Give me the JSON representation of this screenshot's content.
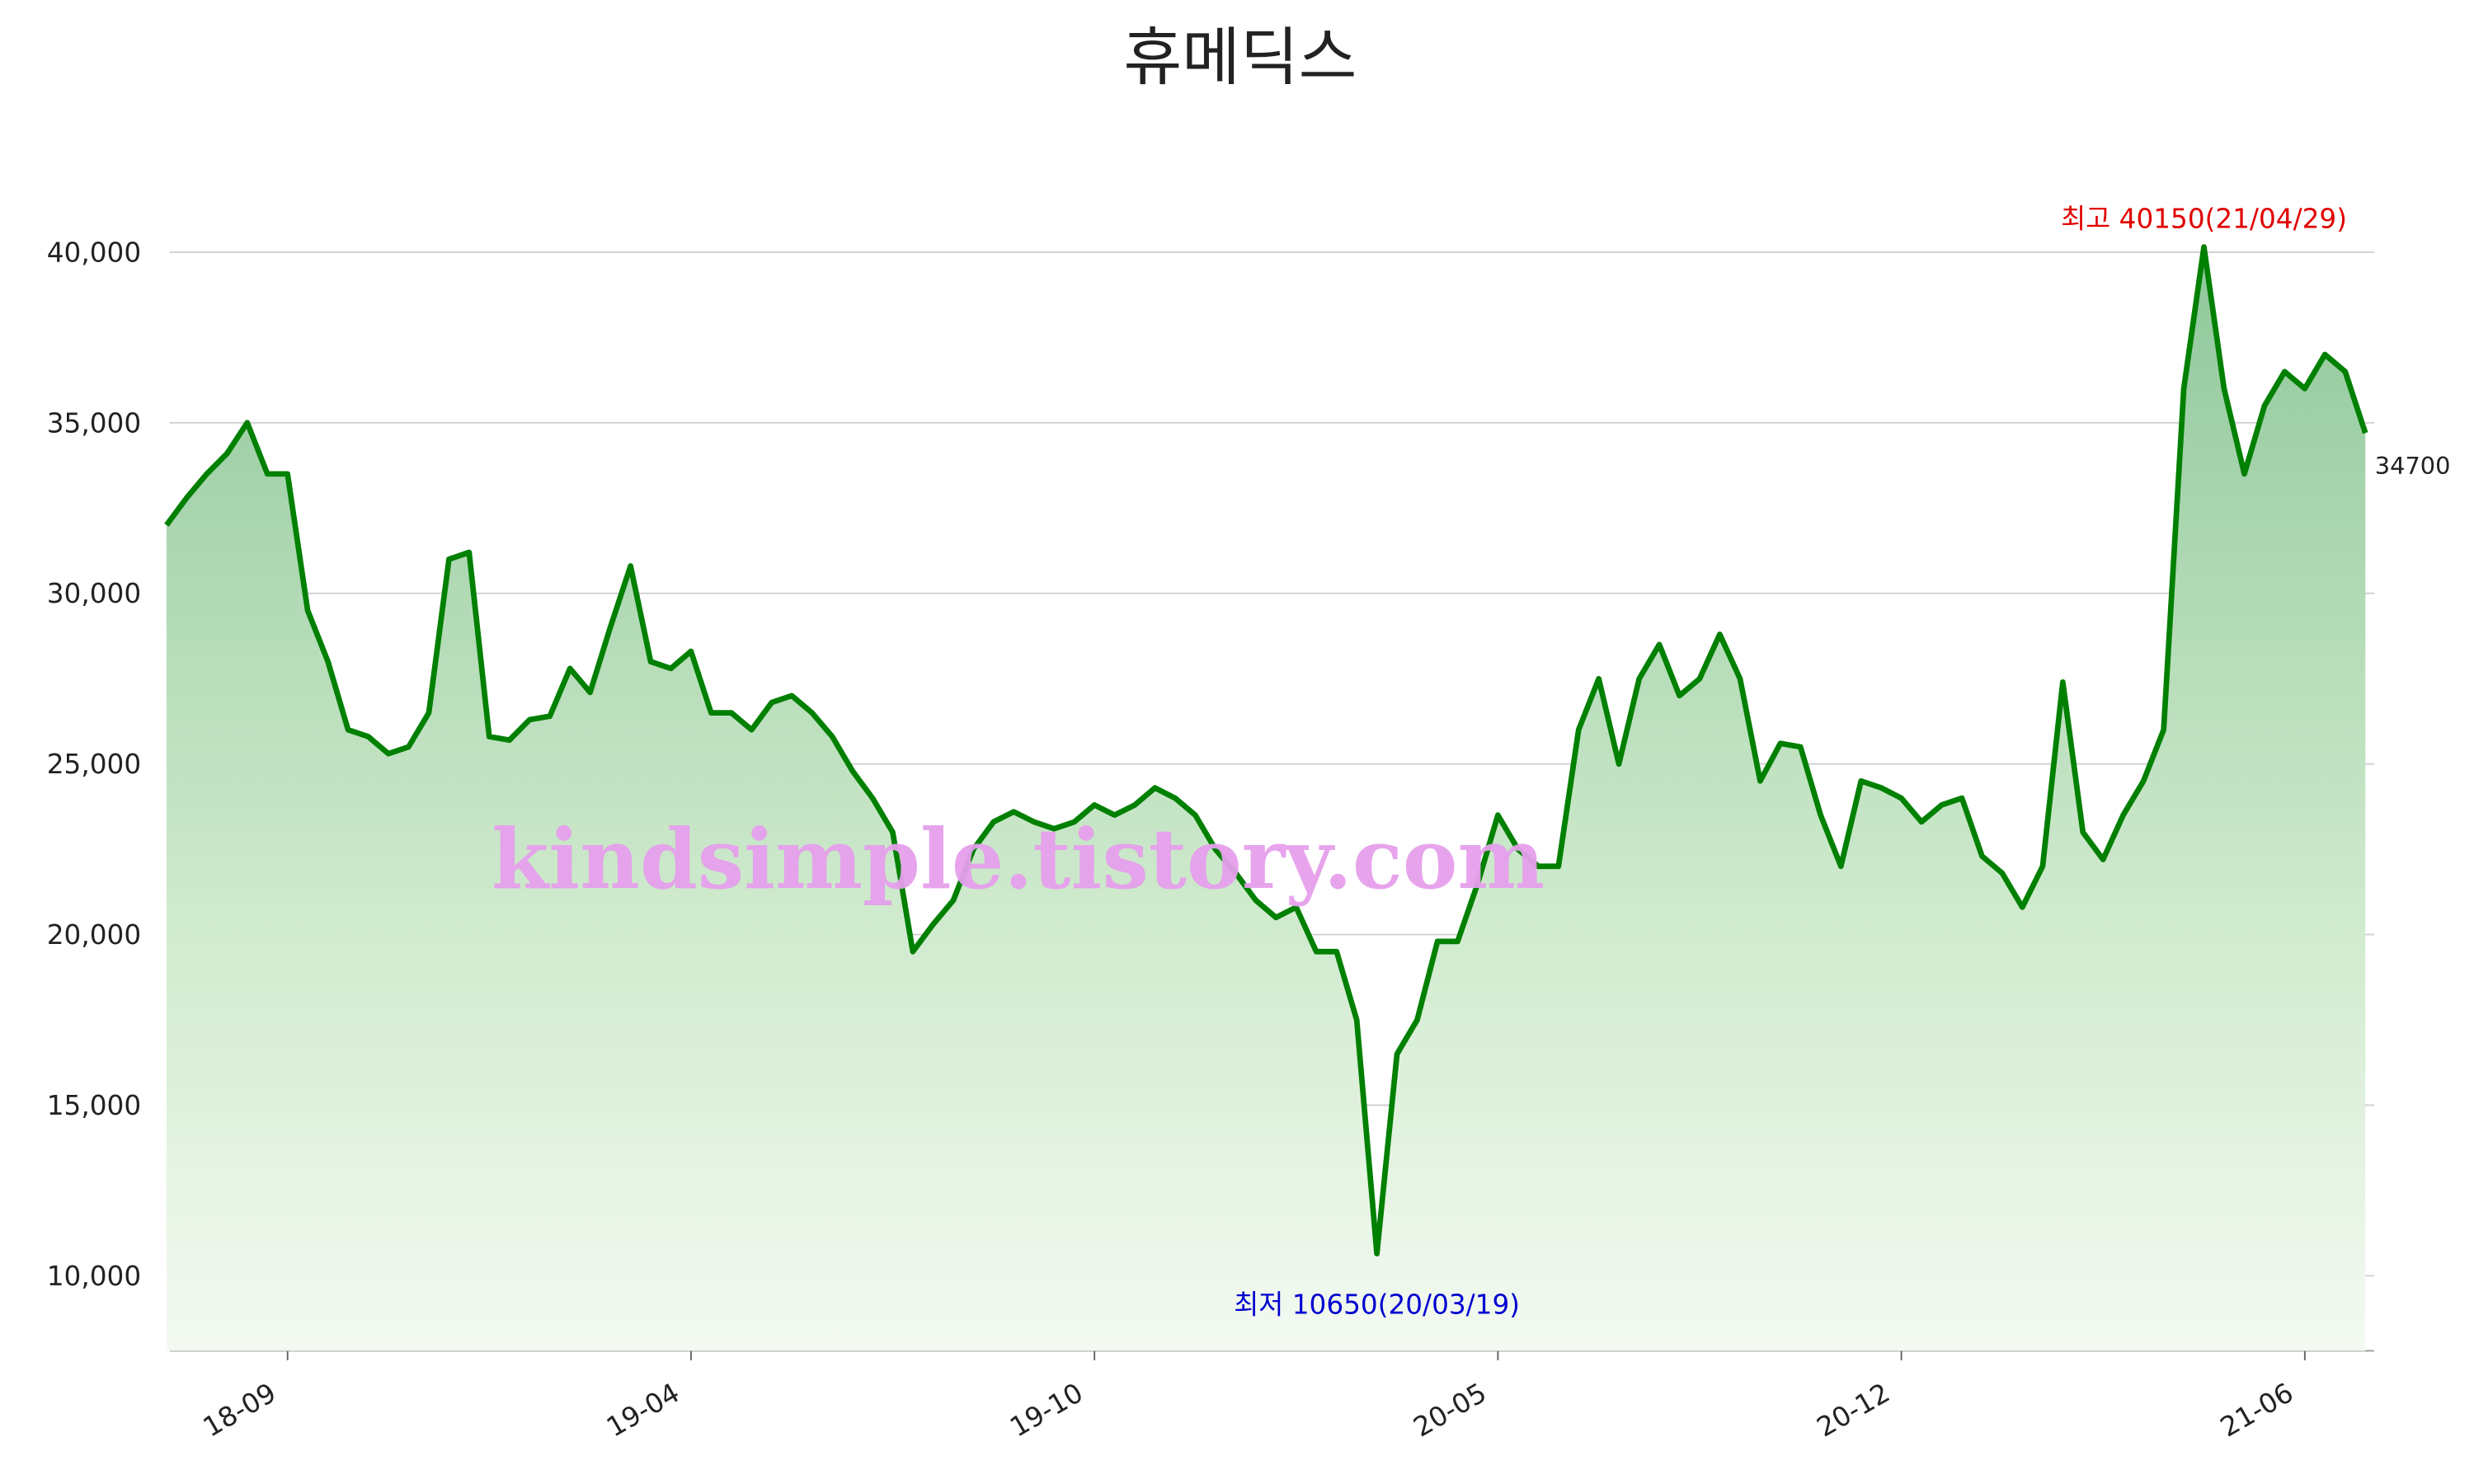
{
  "chart_data": {
    "type": "line",
    "title": "휴메딕스",
    "watermark": "kindsimple.tistory.com",
    "categories": [
      null,
      null,
      null,
      null,
      null,
      null,
      "18-09",
      null,
      null,
      null,
      null,
      null,
      null,
      null,
      null,
      null,
      null,
      null,
      null,
      null,
      null,
      null,
      null,
      null,
      null,
      null,
      "19-04",
      null,
      null,
      null,
      null,
      null,
      null,
      null,
      null,
      null,
      null,
      null,
      null,
      null,
      null,
      null,
      null,
      null,
      null,
      null,
      "19-10",
      null,
      null,
      null,
      null,
      null,
      null,
      null,
      null,
      null,
      null,
      null,
      null,
      null,
      null,
      null,
      null,
      null,
      null,
      null,
      "20-05",
      null,
      null,
      null,
      null,
      null,
      null,
      null,
      null,
      null,
      null,
      null,
      null,
      null,
      null,
      null,
      null,
      null,
      null,
      null,
      "20-12",
      null,
      null,
      null,
      null,
      null,
      null,
      null,
      null,
      null,
      null,
      null,
      null,
      null,
      null,
      null,
      null,
      null,
      null,
      null,
      "21-06",
      null,
      null,
      null
    ],
    "series": [
      {
        "color": "#008000",
        "values": [
          32000,
          32800,
          33500,
          34100,
          35000,
          33500,
          33500,
          29500,
          28000,
          26000,
          25800,
          25300,
          25500,
          26500,
          31000,
          31200,
          25800,
          25700,
          26300,
          26400,
          27800,
          27100,
          29000,
          30800,
          28000,
          27800,
          28300,
          26500,
          26500,
          26000,
          26800,
          27000,
          26500,
          25800,
          24800,
          24000,
          23000,
          19500,
          20300,
          21000,
          22500,
          23300,
          23600,
          23300,
          23100,
          23300,
          23800,
          23500,
          23800,
          24300,
          24000,
          23500,
          22500,
          21800,
          21000,
          20500,
          20800,
          19500,
          19500,
          17500,
          10650,
          16500,
          17500,
          19800,
          19800,
          21500,
          23500,
          22500,
          22000,
          22000,
          26000,
          27500,
          25000,
          27500,
          28500,
          27000,
          27500,
          28800,
          27500,
          24500,
          25600,
          25500,
          23500,
          22000,
          24500,
          24300,
          24000,
          23300,
          23800,
          24000,
          22300,
          21800,
          20800,
          22000,
          27400,
          23000,
          22200,
          23500,
          24500,
          26000,
          36000,
          40150,
          36000,
          33500,
          35500,
          36500,
          36000,
          37000,
          36500,
          34700
        ]
      }
    ],
    "annotations": {
      "max": "최고 40150(21/04/29)",
      "min": "최저 10650(20/03/19)",
      "last": "34700"
    },
    "ylim": [
      7800,
      42300
    ],
    "yticks": [
      {
        "value": 10000,
        "label": "10,000"
      },
      {
        "value": 15000,
        "label": "15,000"
      },
      {
        "value": 20000,
        "label": "20,000"
      },
      {
        "value": 25000,
        "label": "25,000"
      },
      {
        "value": 30000,
        "label": "30,000"
      },
      {
        "value": 35000,
        "label": "35,000"
      },
      {
        "value": 40000,
        "label": "40,000"
      }
    ],
    "grid": true
  }
}
